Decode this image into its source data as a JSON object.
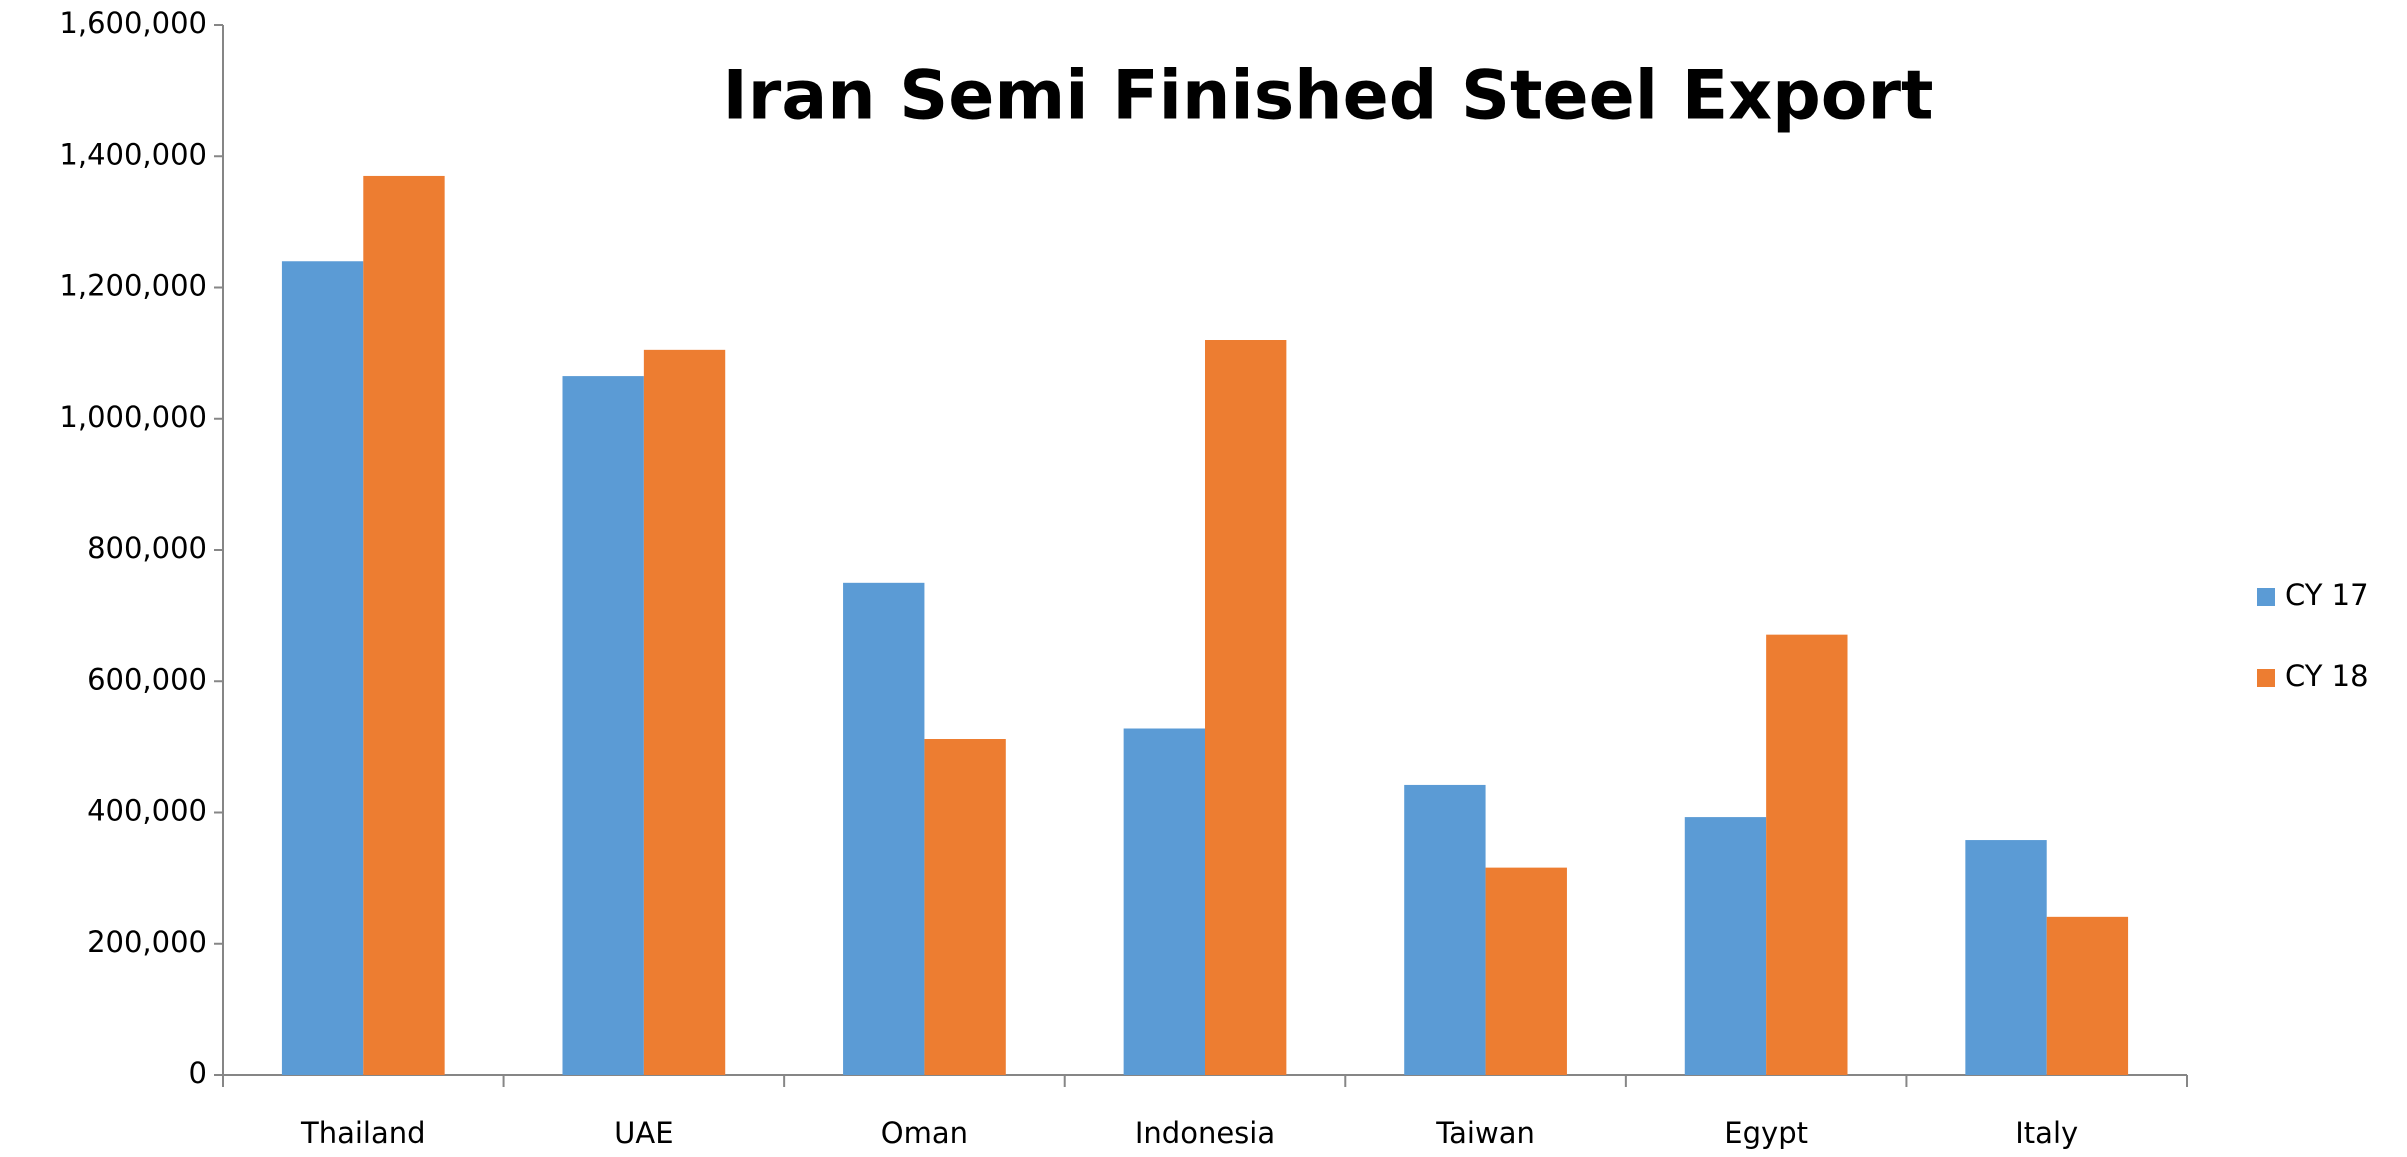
{
  "chart_data": {
    "type": "bar",
    "title": "Iran Semi Finished Steel Export",
    "categories": [
      "Thailand",
      "UAE",
      "Oman",
      "Indonesia",
      "Taiwan",
      "Egypt",
      "Italy"
    ],
    "series": [
      {
        "name": "CY 17",
        "color": "#5b9bd5",
        "values": [
          1240000,
          1065000,
          750000,
          528000,
          442000,
          393000,
          358000
        ]
      },
      {
        "name": "CY 18",
        "color": "#ed7d31",
        "values": [
          1370000,
          1105000,
          512000,
          1120000,
          316000,
          671000,
          241000
        ]
      }
    ],
    "ylim": [
      0,
      1600000
    ],
    "yticks": [
      0,
      {
        "value": 200000,
        "label": "200,000"
      },
      {
        "value": 400000,
        "label": "400,000"
      },
      {
        "value": 600000,
        "label": "600,000"
      },
      {
        "value": 800000,
        "label": "800,000"
      },
      {
        "value": 1000000,
        "label": "1,000,000"
      },
      {
        "value": 1200000,
        "label": "1,200,000"
      },
      {
        "value": 1400000,
        "label": "1,400,000"
      },
      {
        "value": 1600000,
        "label": "1,600,000"
      }
    ],
    "grid": false,
    "legend": "right"
  }
}
